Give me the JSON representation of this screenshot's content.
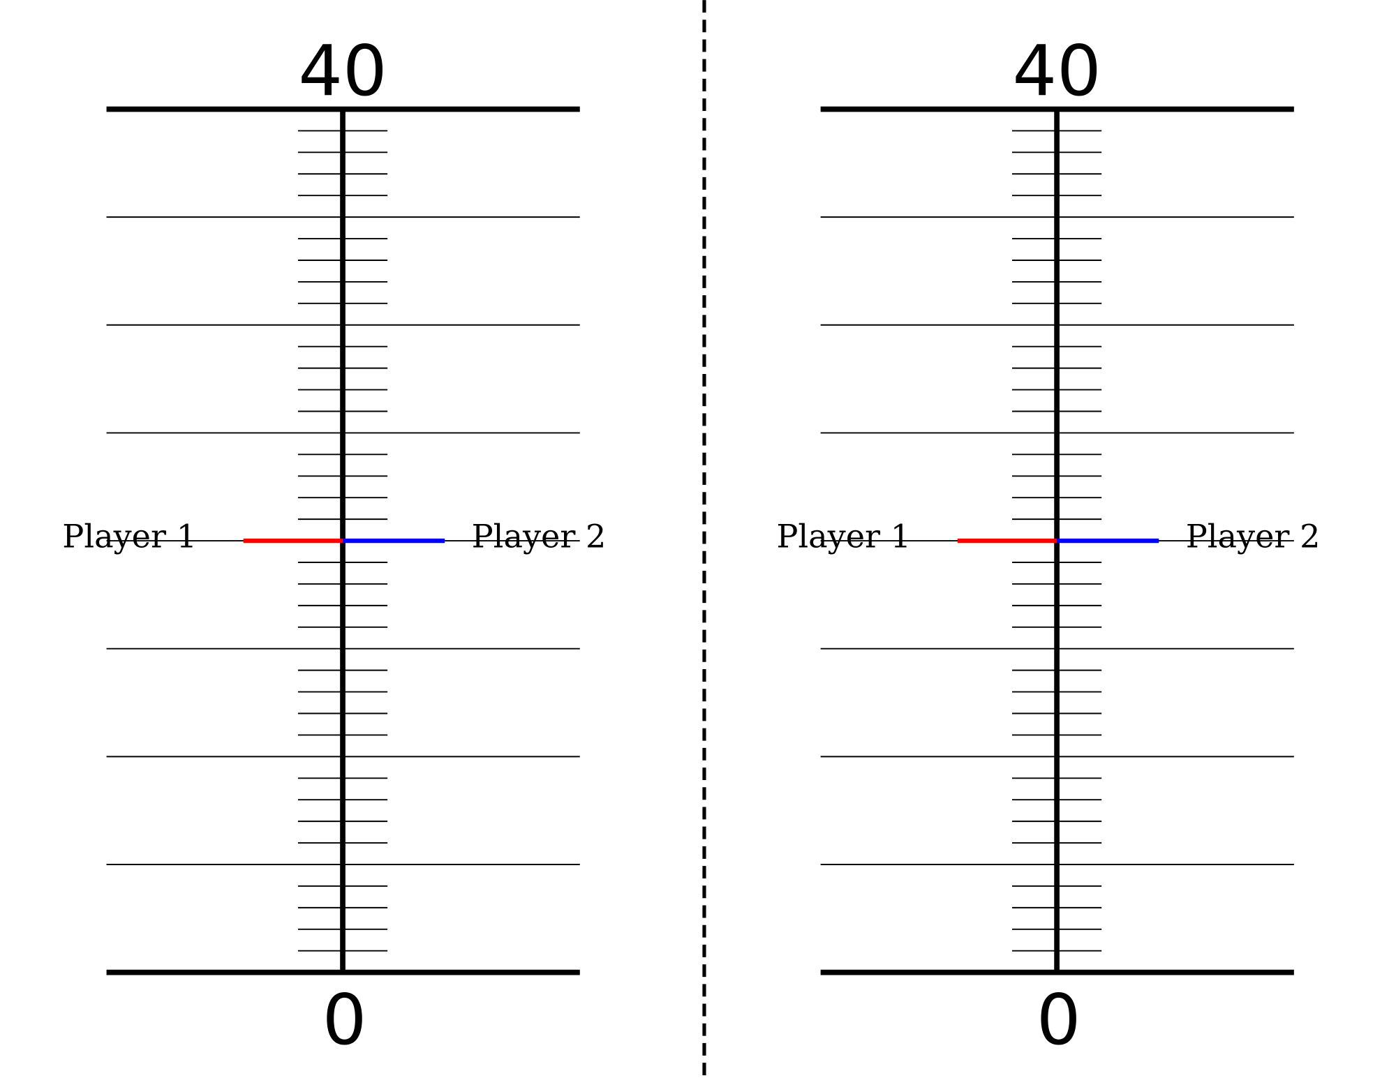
{
  "boards": [
    {
      "min": 0,
      "max": 40,
      "step": 1,
      "major_every": 5,
      "players": [
        {
          "label": "Player 1",
          "color": "#ff0000",
          "value": 20
        },
        {
          "label": "Player 2",
          "color": "#0000ff",
          "value": 20
        }
      ]
    },
    {
      "min": 0,
      "max": 40,
      "step": 1,
      "major_every": 5,
      "players": [
        {
          "label": "Player 1",
          "color": "#ff0000",
          "value": 20
        },
        {
          "label": "Player 2",
          "color": "#0000ff",
          "value": 20
        }
      ]
    }
  ]
}
